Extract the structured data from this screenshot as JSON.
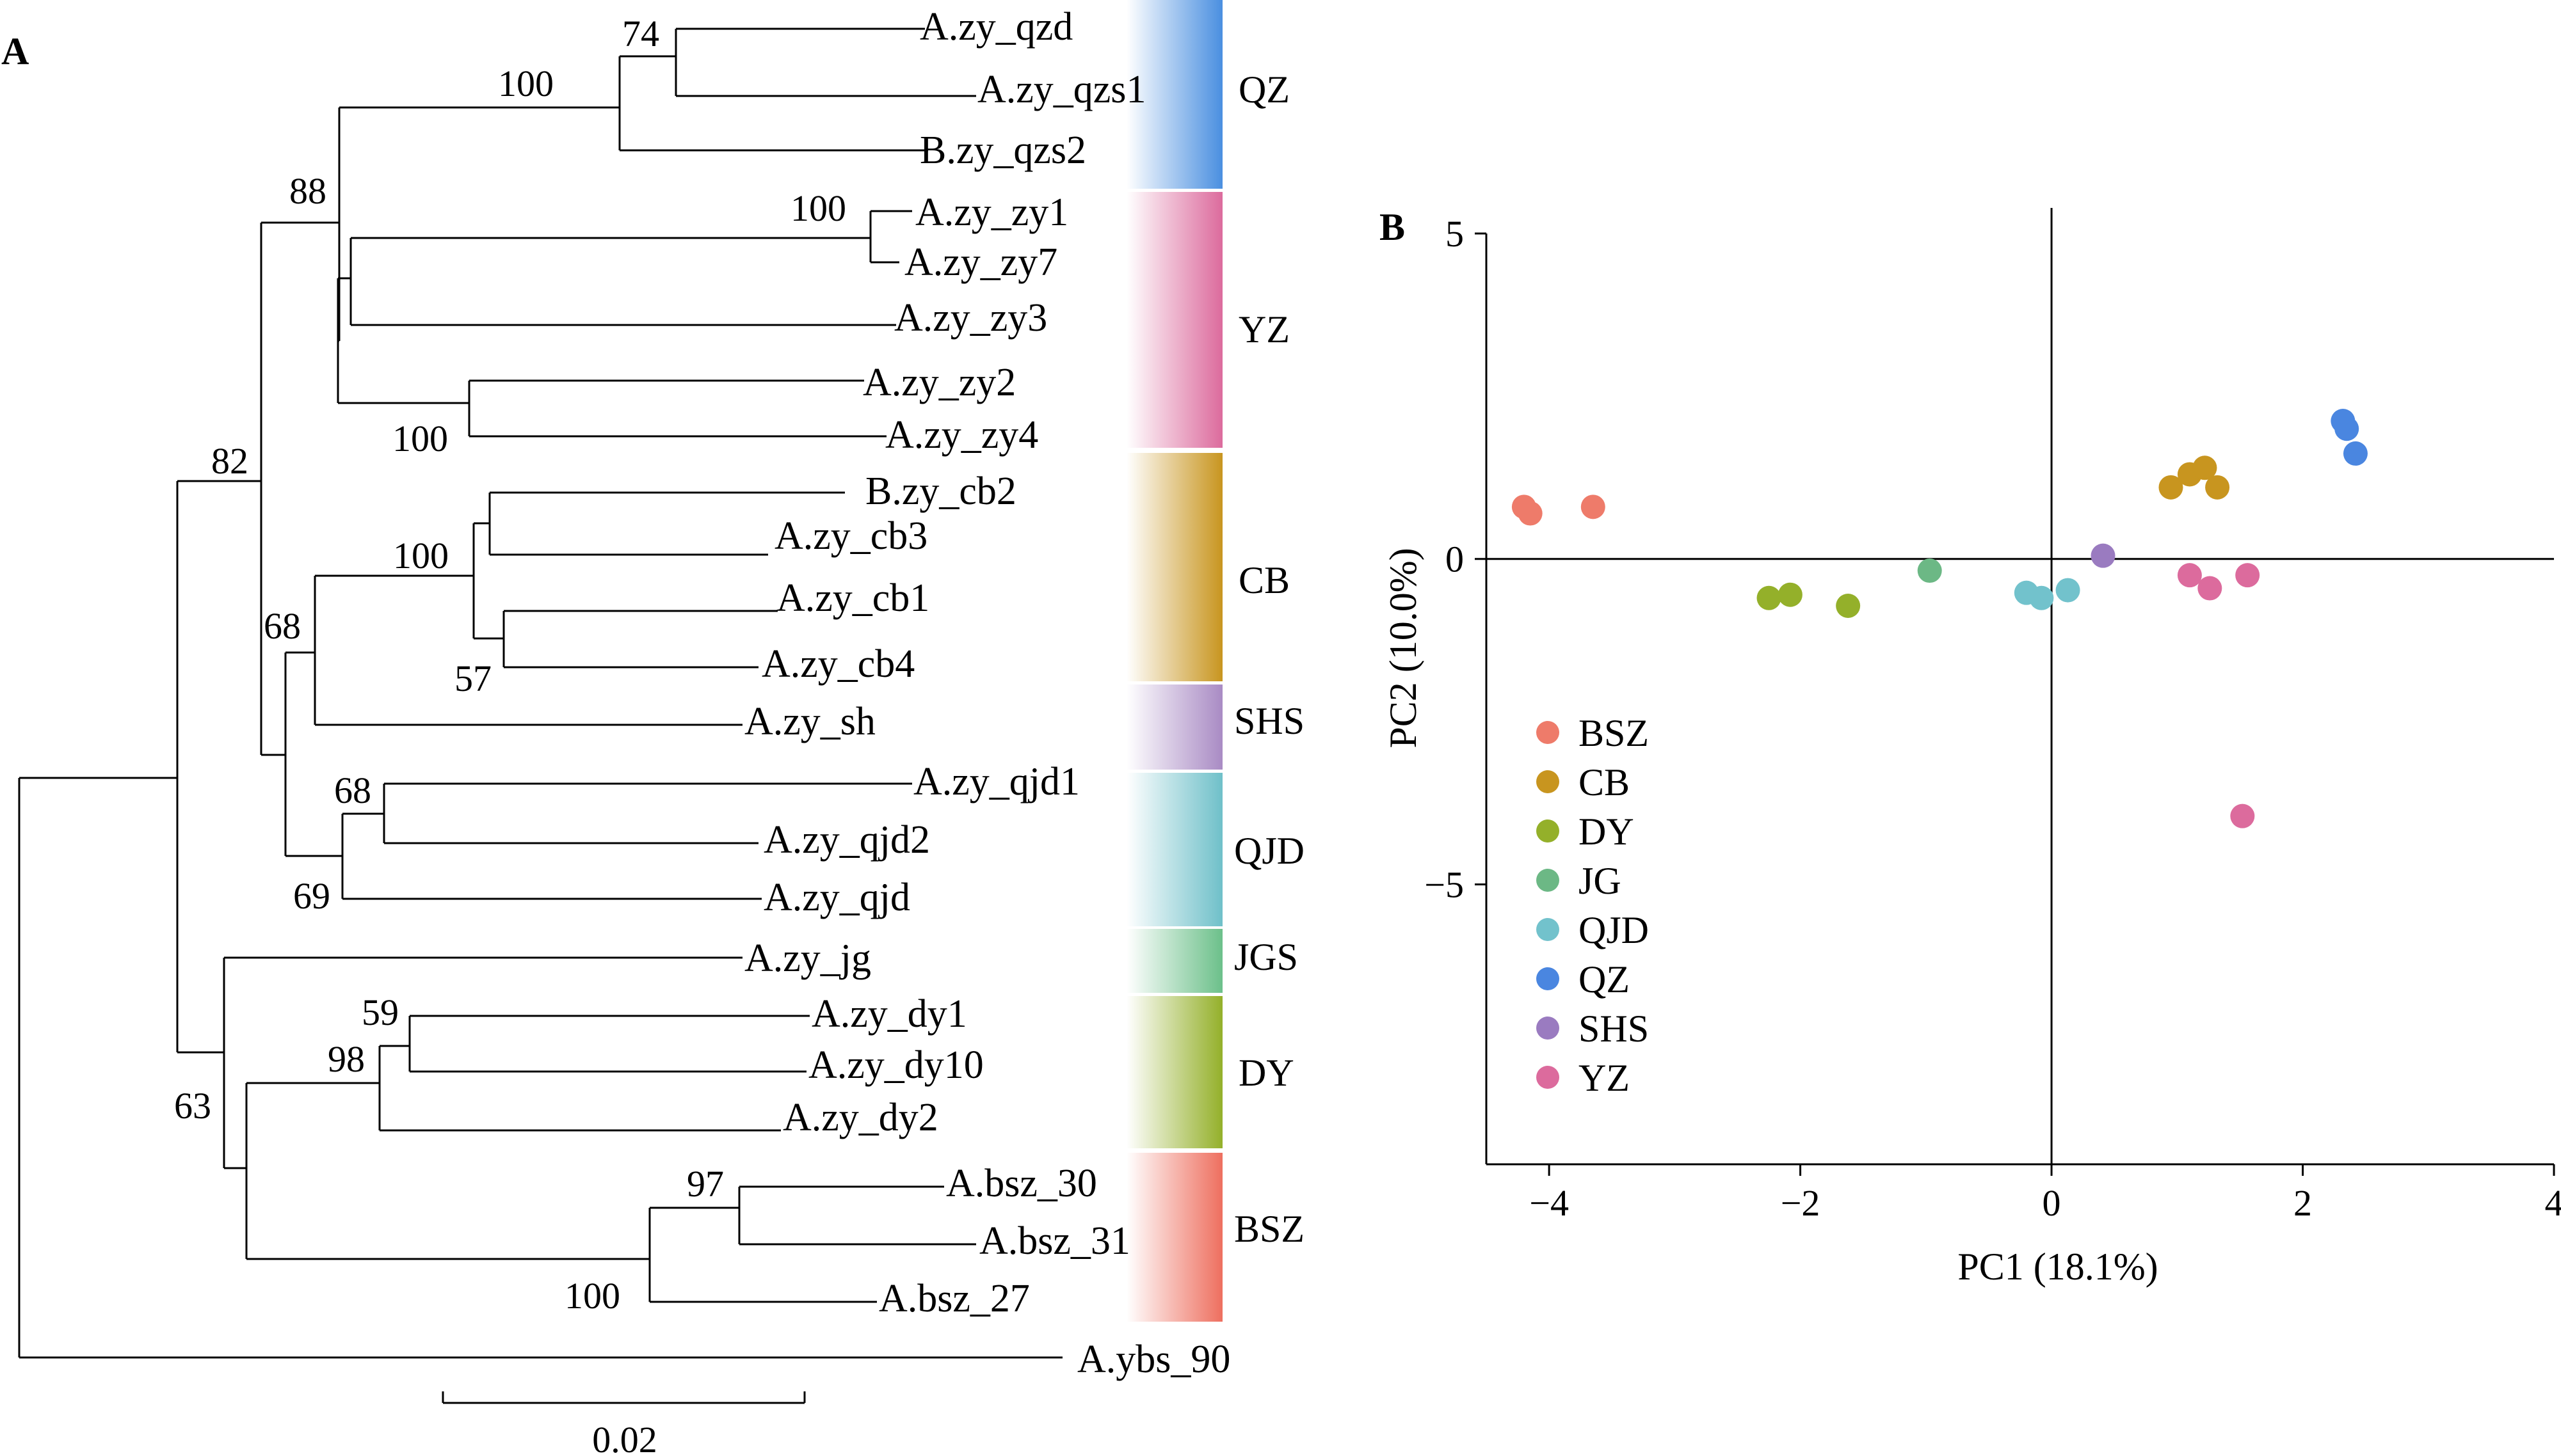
{
  "panels": {
    "a_label": "A",
    "b_label": "B"
  },
  "tree": {
    "tips": [
      "A.zy_qzd",
      "A.zy_qzs1",
      "B.zy_qzs2",
      "A.zy_zy1",
      "A.zy_zy7",
      "A.zy_zy3",
      "A.zy_zy2",
      "A.zy_zy4",
      "B.zy_cb2",
      "A.zy_cb3",
      "A.zy_cb1",
      "A.zy_cb4",
      "A.zy_sh",
      "A.zy_qjd1",
      "A.zy_qjd2",
      "A.zy_qjd",
      "A.zy_jg",
      "A.zy_dy1",
      "A.zy_dy10",
      "A.zy_dy2",
      "A.bsz_30",
      "A.bsz_31",
      "A.bsz_27",
      "A.ybs_90"
    ],
    "support_values": [
      "74",
      "100",
      "88",
      "100",
      "100",
      "82",
      "100",
      "68",
      "57",
      "68",
      "69",
      "63",
      "59",
      "98",
      "97",
      "100"
    ],
    "clades": [
      {
        "name": "QZ",
        "color": "#4a8fe0"
      },
      {
        "name": "YZ",
        "color": "#dc6b9d"
      },
      {
        "name": "CB",
        "color": "#c8951f"
      },
      {
        "name": "SHS",
        "color": "#a98bc4"
      },
      {
        "name": "QJD",
        "color": "#6fc0c9"
      },
      {
        "name": "JGS",
        "color": "#6cc08a"
      },
      {
        "name": "DY",
        "color": "#94b02a"
      },
      {
        "name": "BSZ",
        "color": "#ee6f5f"
      }
    ],
    "scale_bar_label": "0.02"
  },
  "chart_data": {
    "type": "scatter",
    "xlabel": "PC1 (18.1%)",
    "ylabel": "PC2 (10.0%)",
    "xlim": [
      -4.5,
      4
    ],
    "ylim": [
      -9.3,
      5
    ],
    "x_ticks": [
      -4,
      -2,
      0,
      2,
      4
    ],
    "y_ticks": [
      5,
      0,
      -5
    ],
    "x_tick_labels": [
      "−4",
      "−2",
      "0",
      "2",
      "4"
    ],
    "y_tick_labels": [
      "5",
      "0",
      "−5"
    ],
    "reference_lines": {
      "x": 0,
      "y": 0
    },
    "grid": false,
    "legend_position": "left",
    "series": [
      {
        "name": "BSZ",
        "color": "#ee7b6a",
        "points": [
          [
            -4.2,
            0.8
          ],
          [
            -4.15,
            0.7
          ],
          [
            -3.65,
            0.8
          ]
        ]
      },
      {
        "name": "CB",
        "color": "#c8951f",
        "points": [
          [
            0.95,
            1.1
          ],
          [
            1.1,
            1.3
          ],
          [
            1.22,
            1.4
          ],
          [
            1.32,
            1.1
          ]
        ]
      },
      {
        "name": "DY",
        "color": "#94b02a",
        "points": [
          [
            -2.25,
            -0.6
          ],
          [
            -2.08,
            -0.55
          ],
          [
            -1.62,
            -0.72
          ]
        ]
      },
      {
        "name": "JG",
        "color": "#6cb885",
        "points": [
          [
            -0.97,
            -0.18
          ]
        ]
      },
      {
        "name": "QJD",
        "color": "#72c2cc",
        "points": [
          [
            -0.2,
            -0.52
          ],
          [
            -0.08,
            -0.6
          ],
          [
            0.13,
            -0.48
          ]
        ]
      },
      {
        "name": "QZ",
        "color": "#4a86e0",
        "points": [
          [
            2.32,
            2.12
          ],
          [
            2.35,
            2.0
          ],
          [
            2.42,
            1.62
          ]
        ]
      },
      {
        "name": "SHS",
        "color": "#9a7bc0",
        "points": [
          [
            0.41,
            0.05
          ]
        ]
      },
      {
        "name": "YZ",
        "color": "#dc6b9d",
        "points": [
          [
            1.1,
            -0.25
          ],
          [
            1.26,
            -0.45
          ],
          [
            1.56,
            -0.25
          ],
          [
            1.52,
            -3.95
          ]
        ]
      }
    ]
  }
}
